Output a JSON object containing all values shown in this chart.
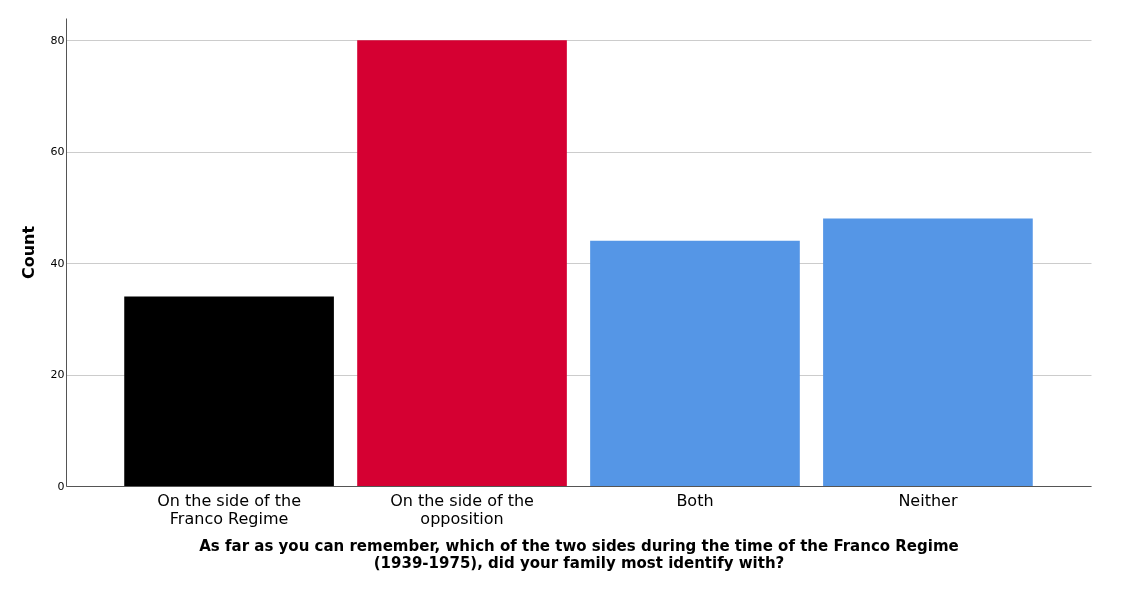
{
  "chart_data": {
    "type": "bar",
    "xlabel": "As far as you can remember, which of the two sides during the time of the Franco Regime (1939-1975), did your family most identify with?",
    "ylabel": "Count",
    "categories": [
      "On the side of the Franco Regime",
      "On the side of the opposition",
      "Both",
      "Neither"
    ],
    "values": [
      34,
      80,
      44,
      48
    ],
    "colors": [
      "#000000",
      "#d50032",
      "#5596e6",
      "#5596e6"
    ],
    "ylim": [
      0,
      84
    ],
    "yticks": [
      0,
      20,
      40,
      60,
      80
    ],
    "grid": "y"
  }
}
